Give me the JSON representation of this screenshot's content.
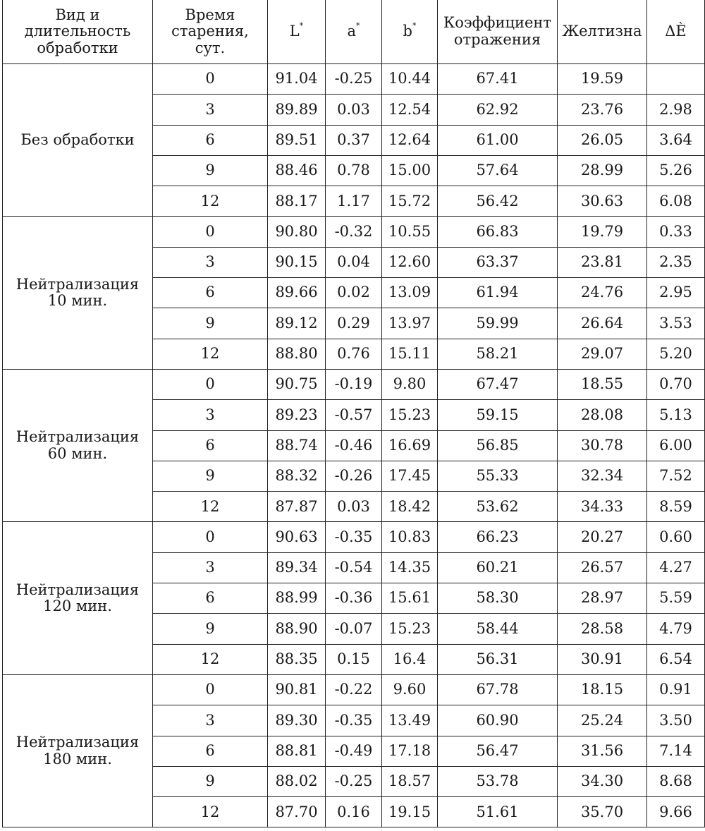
{
  "headers": {
    "treatment": [
      "Вид и",
      "длительность",
      "обработки"
    ],
    "aging": [
      "Время",
      "старения, сут."
    ],
    "L": {
      "base": "L",
      "sup": "*"
    },
    "a": {
      "base": "a",
      "sup": "*"
    },
    "b": {
      "base": "b",
      "sup": "*"
    },
    "reflect": [
      "Коэффициент",
      "отражения"
    ],
    "yellow": "Желтизна",
    "dE": "ΔÈ"
  },
  "groups": [
    {
      "label": [
        "Без обработки"
      ],
      "rows": [
        {
          "t": "0",
          "L": "91.04",
          "a": "-0.25",
          "b": "10.44",
          "refl": "67.41",
          "yel": "19.59",
          "dE": ""
        },
        {
          "t": "3",
          "L": "89.89",
          "a": "0.03",
          "b": "12.54",
          "refl": "62.92",
          "yel": "23.76",
          "dE": "2.98"
        },
        {
          "t": "6",
          "L": "89.51",
          "a": "0.37",
          "b": "12.64",
          "refl": "61.00",
          "yel": "26.05",
          "dE": "3.64"
        },
        {
          "t": "9",
          "L": "88.46",
          "a": "0.78",
          "b": "15.00",
          "refl": "57.64",
          "yel": "28.99",
          "dE": "5.26"
        },
        {
          "t": "12",
          "L": "88.17",
          "a": "1.17",
          "b": "15.72",
          "refl": "56.42",
          "yel": "30.63",
          "dE": "6.08"
        }
      ]
    },
    {
      "label": [
        "Нейтрализация",
        "10 мин."
      ],
      "rows": [
        {
          "t": "0",
          "L": "90.80",
          "a": "-0.32",
          "b": "10.55",
          "refl": "66.83",
          "yel": "19.79",
          "dE": "0.33"
        },
        {
          "t": "3",
          "L": "90.15",
          "a": "0.04",
          "b": "12.60",
          "refl": "63.37",
          "yel": "23.81",
          "dE": "2.35"
        },
        {
          "t": "6",
          "L": "89.66",
          "a": "0.02",
          "b": "13.09",
          "refl": "61.94",
          "yel": "24.76",
          "dE": "2.95"
        },
        {
          "t": "9",
          "L": "89.12",
          "a": "0.29",
          "b": "13.97",
          "refl": "59.99",
          "yel": "26.64",
          "dE": "3.53"
        },
        {
          "t": "12",
          "L": "88.80",
          "a": "0.76",
          "b": "15.11",
          "refl": "58.21",
          "yel": "29.07",
          "dE": "5.20"
        }
      ]
    },
    {
      "label": [
        "Нейтрализация",
        "60 мин."
      ],
      "rows": [
        {
          "t": "0",
          "L": "90.75",
          "a": "-0.19",
          "b": "9.80",
          "refl": "67.47",
          "yel": "18.55",
          "dE": "0.70"
        },
        {
          "t": "3",
          "L": "89.23",
          "a": "-0.57",
          "b": "15.23",
          "refl": "59.15",
          "yel": "28.08",
          "dE": "5.13"
        },
        {
          "t": "6",
          "L": "88.74",
          "a": "-0.46",
          "b": "16.69",
          "refl": "56.85",
          "yel": "30.78",
          "dE": "6.00"
        },
        {
          "t": "9",
          "L": "88.32",
          "a": "-0.26",
          "b": "17.45",
          "refl": "55.33",
          "yel": "32.34",
          "dE": "7.52"
        },
        {
          "t": "12",
          "L": "87.87",
          "a": "0.03",
          "b": "18.42",
          "refl": "53.62",
          "yel": "34.33",
          "dE": "8.59"
        }
      ]
    },
    {
      "label": [
        "Нейтрализация",
        "120 мин."
      ],
      "rows": [
        {
          "t": "0",
          "L": "90.63",
          "a": "-0.35",
          "b": "10.83",
          "refl": "66.23",
          "yel": "20.27",
          "dE": "0.60"
        },
        {
          "t": "3",
          "L": "89.34",
          "a": "-0.54",
          "b": "14.35",
          "refl": "60.21",
          "yel": "26.57",
          "dE": "4.27"
        },
        {
          "t": "6",
          "L": "88.99",
          "a": "-0.36",
          "b": "15.61",
          "refl": "58.30",
          "yel": "28.97",
          "dE": "5.59"
        },
        {
          "t": "9",
          "L": "88.90",
          "a": "-0.07",
          "b": "15.23",
          "refl": "58.44",
          "yel": "28.58",
          "dE": "4.79"
        },
        {
          "t": "12",
          "L": "88.35",
          "a": "0.15",
          "b": "16.4",
          "refl": "56.31",
          "yel": "30.91",
          "dE": "6.54"
        }
      ]
    },
    {
      "label": [
        "Нейтрализация",
        "180 мин."
      ],
      "rows": [
        {
          "t": "0",
          "L": "90.81",
          "a": "-0.22",
          "b": "9.60",
          "refl": "67.78",
          "yel": "18.15",
          "dE": "0.91"
        },
        {
          "t": "3",
          "L": "89.30",
          "a": "-0.35",
          "b": "13.49",
          "refl": "60.90",
          "yel": "25.24",
          "dE": "3.50"
        },
        {
          "t": "6",
          "L": "88.81",
          "a": "-0.49",
          "b": "17.18",
          "refl": "56.47",
          "yel": "31.56",
          "dE": "7.14"
        },
        {
          "t": "9",
          "L": "88.02",
          "a": "-0.25",
          "b": "18.57",
          "refl": "53.78",
          "yel": "34.30",
          "dE": "8.68"
        },
        {
          "t": "12",
          "L": "87.70",
          "a": "0.16",
          "b": "19.15",
          "refl": "51.61",
          "yel": "35.70",
          "dE": "9.66"
        }
      ]
    }
  ]
}
